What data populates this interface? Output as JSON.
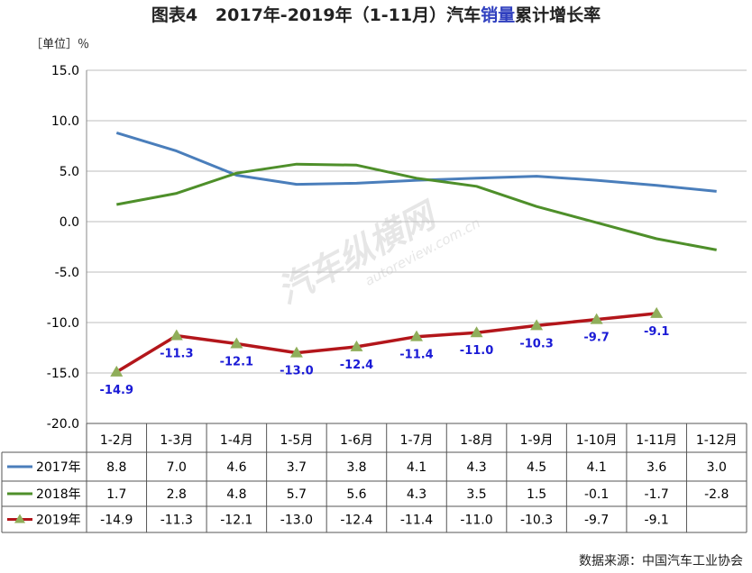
{
  "title_prefix": "图表4",
  "title_main": "2017年-2019年（1-11月）汽车",
  "title_highlight": "销量",
  "title_suffix": "累计增长率",
  "unit_label": "［单位］％",
  "source": "数据来源：中国汽车工业协会",
  "watermark": {
    "main": "汽车纵横网",
    "url": "autoreview.com.cn"
  },
  "colors": {
    "s2017": "#4a7ebb",
    "s2018": "#4e8f2a",
    "s2019": "#b3161b",
    "marker": "#8fae5a",
    "label2019": "#1a1ad6"
  },
  "chart_data": {
    "type": "line",
    "categories": [
      "1-2月",
      "1-3月",
      "1-4月",
      "1-5月",
      "1-6月",
      "1-7月",
      "1-8月",
      "1-9月",
      "1-10月",
      "1-11月",
      "1-12月"
    ],
    "ylim": [
      -20,
      15
    ],
    "yticks": [
      "15.0",
      "10.0",
      "5.0",
      "0.0",
      "-5.0",
      "-10.0",
      "-15.0",
      "-20.0"
    ],
    "series": [
      {
        "name": "2017年",
        "values": [
          8.8,
          7.0,
          4.6,
          3.7,
          3.8,
          4.1,
          4.3,
          4.5,
          4.1,
          3.6,
          3.0
        ],
        "cells": [
          "8.8",
          "7.0",
          "4.6",
          "3.7",
          "3.8",
          "4.1",
          "4.3",
          "4.5",
          "4.1",
          "3.6",
          "3.0"
        ]
      },
      {
        "name": "2018年",
        "values": [
          1.7,
          2.8,
          4.8,
          5.7,
          5.6,
          4.3,
          3.5,
          1.5,
          -0.1,
          -1.7,
          -2.8
        ],
        "cells": [
          "1.7",
          "2.8",
          "4.8",
          "5.7",
          "5.6",
          "4.3",
          "3.5",
          "1.5",
          "-0.1",
          "-1.7",
          "-2.8"
        ]
      },
      {
        "name": "2019年",
        "values": [
          -14.9,
          -11.3,
          -12.1,
          -13.0,
          -12.4,
          -11.4,
          -11.0,
          -10.3,
          -9.7,
          -9.1,
          null
        ],
        "cells": [
          "-14.9",
          "-11.3",
          "-12.1",
          "-13.0",
          "-12.4",
          "-11.4",
          "-11.0",
          "-10.3",
          "-9.7",
          "-9.1",
          ""
        ]
      }
    ]
  }
}
